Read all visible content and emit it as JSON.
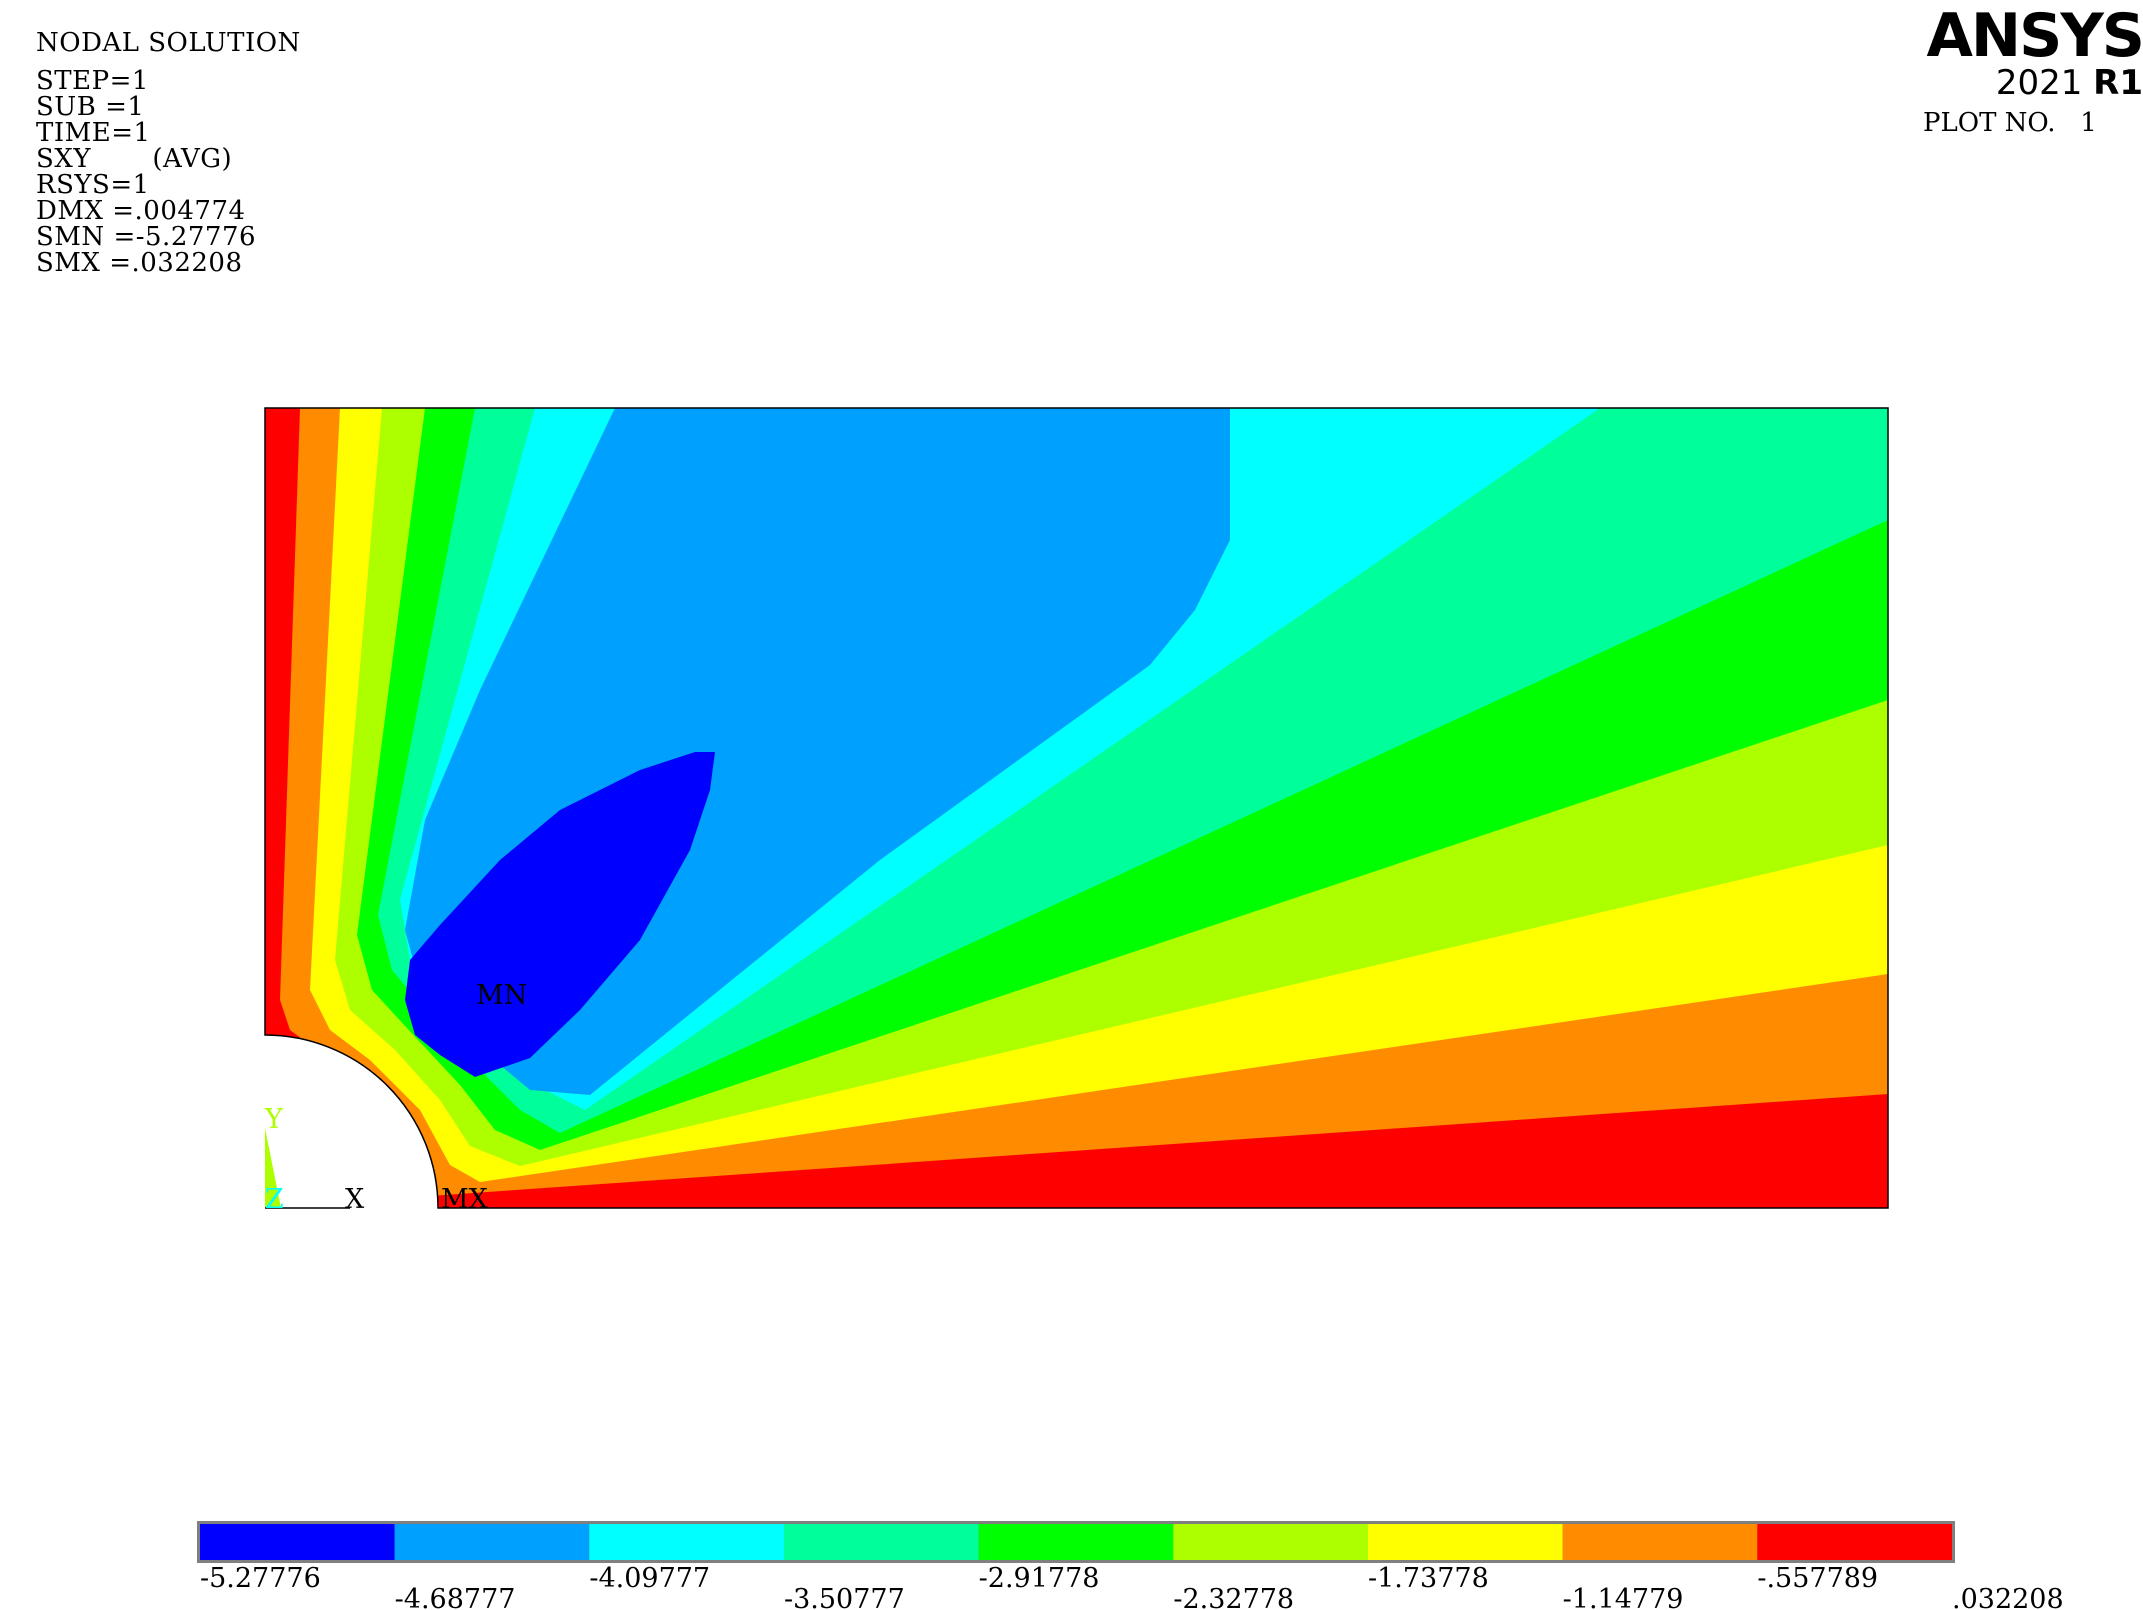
{
  "info": {
    "title": "NODAL SOLUTION",
    "lines": [
      "STEP=1",
      "SUB =1",
      "TIME=1",
      "SXY       (AVG)",
      "RSYS=1",
      "DMX =.004774",
      "SMN =-5.27776",
      "SMX =.032208"
    ]
  },
  "logo": {
    "brand": "ANSYS",
    "version": "2021",
    "release": "R1"
  },
  "plot_no": "PLOT NO.   1",
  "markers": {
    "min": "MN",
    "max": "MX"
  },
  "axis": {
    "y": "Y",
    "z": "Z",
    "x": "X"
  },
  "legend": {
    "colors": [
      "#0000ff",
      "#00a0ff",
      "#00ffff",
      "#00ff9a",
      "#00ff00",
      "#adff00",
      "#ffff00",
      "#ff8c00",
      "#ff0000"
    ],
    "ticks": [
      "-5.27776",
      "-4.68777",
      "-4.09777",
      "-3.50777",
      "-2.91778",
      "-2.32778",
      "-1.73778",
      "-1.14779",
      "-.557789",
      ".032208"
    ]
  }
}
